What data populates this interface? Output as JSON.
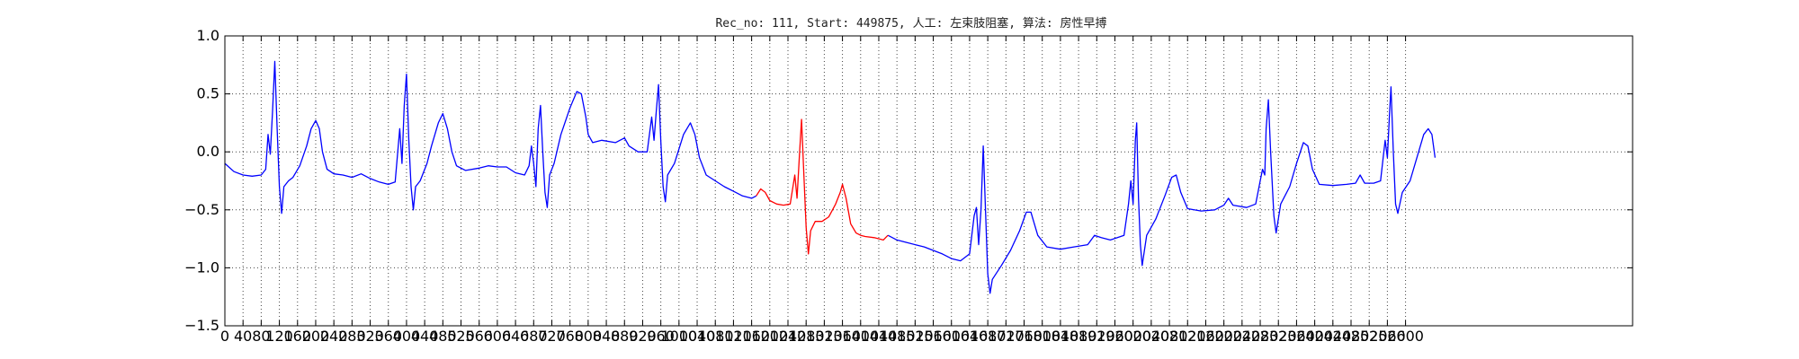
{
  "chart_data": {
    "type": "line",
    "title": "Rec_no: 111, Start: 449875, 人工: 左束肢阻塞, 算法: 房性早搏",
    "xlabel": "",
    "ylabel": "",
    "xlim": [
      0,
      3100
    ],
    "ylim": [
      -1.5,
      1.0
    ],
    "grid": true,
    "x_ticks": [
      0,
      40,
      80,
      120,
      160,
      200,
      240,
      280,
      320,
      360,
      400,
      440,
      480,
      520,
      560,
      600,
      640,
      680,
      720,
      760,
      800,
      840,
      880,
      920,
      960,
      1000,
      1040,
      1080,
      1120,
      1160,
      1200,
      1240,
      1280,
      1320,
      1360,
      1400,
      1440,
      1480,
      1520,
      1560,
      1600,
      1640,
      1680,
      1720,
      1760,
      1800,
      1840,
      1880,
      1920,
      1960,
      2000,
      2040,
      2080,
      2120,
      2160,
      2200,
      2240,
      2280,
      2320,
      2360,
      2400,
      2440,
      2480,
      2520,
      2560,
      2600
    ],
    "x_tick_labels": [
      "0",
      "40",
      "80",
      "120",
      "160",
      "200",
      "240",
      "280",
      "320",
      "360",
      "400",
      "440",
      "480",
      "520",
      "560",
      "600",
      "640",
      "680",
      "720",
      "760",
      "800",
      "840",
      "880",
      "920",
      "960",
      "1000",
      "1040",
      "1080",
      "1120",
      "1160",
      "1200",
      "1240",
      "1280",
      "1320",
      "1360",
      "1400",
      "1440",
      "1480",
      "1520",
      "1560",
      "1600",
      "1640",
      "1680",
      "1720",
      "1760",
      "1800",
      "1840",
      "1880",
      "1920",
      "1960",
      "2000",
      "2040",
      "2080",
      "2120",
      "2160",
      "2200",
      "2240",
      "2280",
      "2320",
      "2360",
      "2400",
      "2440",
      "2480",
      "2520",
      "2560",
      "2600"
    ],
    "y_ticks": [
      -1.5,
      -1.0,
      -0.5,
      0.0,
      0.5,
      1.0
    ],
    "y_tick_labels": [
      "−1.5",
      "−1.0",
      "−0.5",
      "0.0",
      "0.5",
      "1.0"
    ],
    "series": [
      {
        "color": "#0000ff",
        "segments": [
          [
            [
              0,
              -0.1
            ],
            [
              20,
              -0.17
            ],
            [
              40,
              -0.2
            ],
            [
              60,
              -0.21
            ],
            [
              80,
              -0.2
            ],
            [
              90,
              -0.15
            ],
            [
              95,
              0.15
            ],
            [
              100,
              -0.02
            ],
            [
              105,
              0.35
            ],
            [
              110,
              0.78
            ],
            [
              115,
              0.2
            ],
            [
              120,
              -0.3
            ],
            [
              125,
              -0.53
            ],
            [
              130,
              -0.3
            ],
            [
              140,
              -0.25
            ],
            [
              150,
              -0.22
            ],
            [
              165,
              -0.12
            ],
            [
              180,
              0.05
            ],
            [
              190,
              0.2
            ],
            [
              200,
              0.27
            ],
            [
              208,
              0.2
            ],
            [
              215,
              0.0
            ],
            [
              225,
              -0.15
            ],
            [
              240,
              -0.19
            ],
            [
              260,
              -0.2
            ],
            [
              280,
              -0.22
            ],
            [
              300,
              -0.19
            ],
            [
              320,
              -0.23
            ],
            [
              340,
              -0.26
            ],
            [
              360,
              -0.28
            ],
            [
              375,
              -0.26
            ],
            [
              385,
              0.2
            ],
            [
              390,
              -0.1
            ],
            [
              395,
              0.4
            ],
            [
              400,
              0.67
            ],
            [
              405,
              0.1
            ],
            [
              410,
              -0.3
            ],
            [
              415,
              -0.5
            ],
            [
              420,
              -0.3
            ],
            [
              430,
              -0.25
            ],
            [
              445,
              -0.1
            ],
            [
              455,
              0.05
            ],
            [
              470,
              0.25
            ],
            [
              480,
              0.33
            ],
            [
              490,
              0.2
            ],
            [
              500,
              0.0
            ],
            [
              510,
              -0.12
            ],
            [
              530,
              -0.16
            ],
            [
              560,
              -0.14
            ],
            [
              580,
              -0.12
            ],
            [
              600,
              -0.13
            ],
            [
              620,
              -0.13
            ],
            [
              640,
              -0.18
            ],
            [
              660,
              -0.2
            ],
            [
              670,
              -0.12
            ],
            [
              675,
              0.05
            ],
            [
              680,
              -0.1
            ],
            [
              685,
              -0.3
            ],
            [
              690,
              0.2
            ],
            [
              695,
              0.4
            ],
            [
              700,
              0.0
            ],
            [
              705,
              -0.35
            ],
            [
              710,
              -0.48
            ],
            [
              715,
              -0.2
            ],
            [
              725,
              -0.1
            ],
            [
              740,
              0.15
            ],
            [
              760,
              0.38
            ],
            [
              775,
              0.52
            ],
            [
              785,
              0.5
            ],
            [
              795,
              0.3
            ],
            [
              800,
              0.15
            ],
            [
              810,
              0.08
            ],
            [
              830,
              0.1
            ],
            [
              860,
              0.08
            ],
            [
              880,
              0.12
            ],
            [
              890,
              0.05
            ],
            [
              910,
              0.0
            ],
            [
              930,
              0.0
            ],
            [
              940,
              0.3
            ],
            [
              945,
              0.1
            ],
            [
              950,
              0.35
            ],
            [
              955,
              0.58
            ],
            [
              960,
              0.1
            ],
            [
              965,
              -0.3
            ],
            [
              970,
              -0.43
            ],
            [
              975,
              -0.2
            ],
            [
              990,
              -0.1
            ],
            [
              1010,
              0.15
            ],
            [
              1025,
              0.25
            ],
            [
              1035,
              0.15
            ],
            [
              1045,
              -0.05
            ],
            [
              1060,
              -0.2
            ],
            [
              1080,
              -0.25
            ],
            [
              1100,
              -0.3
            ],
            [
              1120,
              -0.34
            ],
            [
              1140,
              -0.38
            ],
            [
              1160,
              -0.4
            ],
            [
              1170,
              -0.38
            ]
          ],
          [
            [
              1460,
              -0.72
            ],
            [
              1480,
              -0.76
            ],
            [
              1500,
              -0.78
            ],
            [
              1520,
              -0.8
            ],
            [
              1540,
              -0.82
            ],
            [
              1560,
              -0.85
            ],
            [
              1580,
              -0.88
            ],
            [
              1600,
              -0.92
            ],
            [
              1620,
              -0.94
            ],
            [
              1640,
              -0.88
            ],
            [
              1650,
              -0.55
            ],
            [
              1655,
              -0.48
            ],
            [
              1660,
              -0.8
            ],
            [
              1665,
              -0.5
            ],
            [
              1670,
              0.05
            ],
            [
              1675,
              -0.5
            ],
            [
              1680,
              -1.05
            ],
            [
              1685,
              -1.22
            ],
            [
              1690,
              -1.1
            ],
            [
              1710,
              -0.98
            ],
            [
              1730,
              -0.85
            ],
            [
              1750,
              -0.68
            ],
            [
              1765,
              -0.52
            ],
            [
              1775,
              -0.52
            ],
            [
              1790,
              -0.72
            ],
            [
              1810,
              -0.82
            ],
            [
              1840,
              -0.84
            ],
            [
              1870,
              -0.82
            ],
            [
              1900,
              -0.8
            ],
            [
              1915,
              -0.72
            ],
            [
              1930,
              -0.74
            ],
            [
              1950,
              -0.76
            ],
            [
              1980,
              -0.72
            ],
            [
              1990,
              -0.45
            ],
            [
              1995,
              -0.25
            ],
            [
              2000,
              -0.45
            ],
            [
              2005,
              0.1
            ],
            [
              2008,
              0.25
            ],
            [
              2012,
              -0.4
            ],
            [
              2016,
              -0.8
            ],
            [
              2020,
              -0.98
            ],
            [
              2030,
              -0.72
            ],
            [
              2050,
              -0.58
            ],
            [
              2070,
              -0.38
            ],
            [
              2085,
              -0.22
            ],
            [
              2095,
              -0.2
            ],
            [
              2105,
              -0.35
            ],
            [
              2120,
              -0.49
            ],
            [
              2150,
              -0.51
            ],
            [
              2180,
              -0.5
            ],
            [
              2200,
              -0.46
            ],
            [
              2210,
              -0.4
            ],
            [
              2220,
              -0.46
            ],
            [
              2250,
              -0.48
            ],
            [
              2270,
              -0.45
            ],
            [
              2280,
              -0.25
            ],
            [
              2285,
              -0.15
            ],
            [
              2290,
              -0.2
            ],
            [
              2293,
              0.2
            ],
            [
              2298,
              0.45
            ],
            [
              2303,
              0.0
            ],
            [
              2310,
              -0.55
            ],
            [
              2315,
              -0.7
            ],
            [
              2325,
              -0.45
            ],
            [
              2345,
              -0.3
            ],
            [
              2360,
              -0.1
            ],
            [
              2375,
              0.08
            ],
            [
              2385,
              0.05
            ],
            [
              2395,
              -0.15
            ],
            [
              2410,
              -0.28
            ],
            [
              2440,
              -0.29
            ],
            [
              2470,
              -0.28
            ],
            [
              2490,
              -0.27
            ],
            [
              2500,
              -0.2
            ],
            [
              2510,
              -0.27
            ],
            [
              2530,
              -0.27
            ],
            [
              2545,
              -0.25
            ],
            [
              2555,
              0.1
            ],
            [
              2560,
              -0.05
            ],
            [
              2565,
              0.35
            ],
            [
              2568,
              0.56
            ],
            [
              2573,
              0.0
            ],
            [
              2578,
              -0.45
            ],
            [
              2583,
              -0.53
            ],
            [
              2593,
              -0.35
            ],
            [
              2610,
              -0.25
            ],
            [
              2625,
              -0.05
            ],
            [
              2640,
              0.15
            ],
            [
              2650,
              0.2
            ],
            [
              2658,
              0.15
            ],
            [
              2665,
              -0.05
            ]
          ]
        ]
      },
      {
        "color": "#ff0000",
        "segments": [
          [
            [
              1170,
              -0.38
            ],
            [
              1180,
              -0.32
            ],
            [
              1190,
              -0.35
            ],
            [
              1200,
              -0.42
            ],
            [
              1215,
              -0.45
            ],
            [
              1230,
              -0.46
            ],
            [
              1245,
              -0.45
            ],
            [
              1255,
              -0.2
            ],
            [
              1260,
              -0.4
            ],
            [
              1265,
              -0.05
            ],
            [
              1270,
              0.28
            ],
            [
              1275,
              -0.2
            ],
            [
              1280,
              -0.65
            ],
            [
              1285,
              -0.88
            ],
            [
              1290,
              -0.68
            ],
            [
              1300,
              -0.6
            ],
            [
              1315,
              -0.6
            ],
            [
              1330,
              -0.56
            ],
            [
              1345,
              -0.45
            ],
            [
              1355,
              -0.35
            ],
            [
              1360,
              -0.28
            ],
            [
              1368,
              -0.4
            ],
            [
              1378,
              -0.62
            ],
            [
              1390,
              -0.7
            ],
            [
              1400,
              -0.72
            ],
            [
              1410,
              -0.73
            ],
            [
              1430,
              -0.74
            ],
            [
              1450,
              -0.76
            ],
            [
              1460,
              -0.72
            ]
          ]
        ]
      }
    ]
  }
}
